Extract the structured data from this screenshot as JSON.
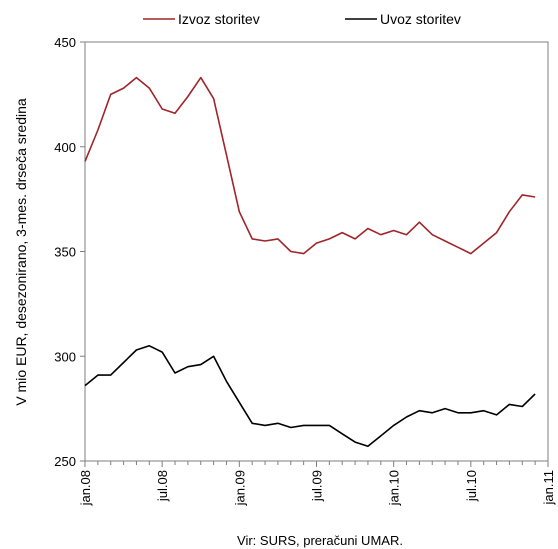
{
  "chart_data": {
    "type": "line",
    "ylabel": "V mio EUR, desezonirano, 3-mes. drseča sredina",
    "ylim": [
      250,
      450
    ],
    "yticks": [
      250,
      300,
      350,
      400,
      450
    ],
    "x_tick_labels": [
      "jan.08",
      "jul.08",
      "jan.09",
      "jul.09",
      "jan.10",
      "jul.10",
      "jan.11"
    ],
    "months_per_tick": 6,
    "x_count": 37,
    "source": "Vir: SURS, preračuni UMAR.",
    "legend_position": "top",
    "grid": false,
    "series": [
      {
        "name": "Izvoz storitev",
        "color": "#a0252a",
        "values": [
          393,
          408,
          425,
          428,
          433,
          428,
          418,
          416,
          424,
          433,
          423,
          396,
          369,
          356,
          355,
          356,
          350,
          349,
          354,
          356,
          359,
          356,
          361,
          358,
          360,
          358,
          364,
          358,
          355,
          352,
          349,
          354,
          359,
          369,
          377,
          376
        ]
      },
      {
        "name": "Uvoz storitev",
        "color": "#000000",
        "values": [
          286,
          291,
          291,
          297,
          303,
          305,
          302,
          292,
          295,
          296,
          300,
          288,
          278,
          268,
          267,
          268,
          266,
          267,
          267,
          267,
          263,
          259,
          257,
          262,
          267,
          271,
          274,
          273,
          275,
          273,
          273,
          274,
          272,
          277,
          276,
          282
        ]
      }
    ]
  }
}
